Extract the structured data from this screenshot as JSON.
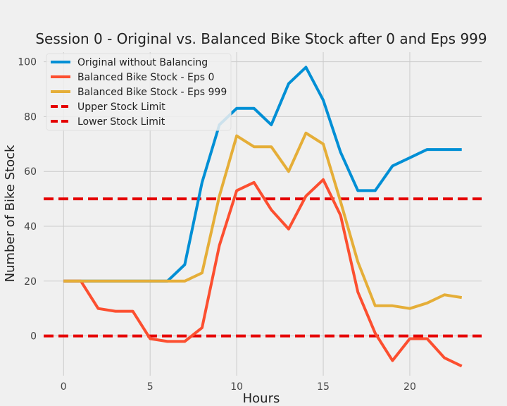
{
  "chart_data": {
    "type": "line",
    "title": "Session 0 - Original vs. Balanced Bike Stock after 0 and Eps 999",
    "xlabel": "Hours",
    "ylabel": "Number of Bike Stock",
    "xlim": [
      -1.15,
      24.15
    ],
    "ylim": [
      -14.5,
      103.5
    ],
    "xticks": [
      0,
      5,
      10,
      15,
      20
    ],
    "yticks": [
      0,
      20,
      40,
      60,
      80,
      100
    ],
    "grid": true,
    "legend_position": "top-left",
    "x": [
      0,
      1,
      2,
      3,
      4,
      5,
      6,
      7,
      8,
      9,
      10,
      11,
      12,
      13,
      14,
      15,
      16,
      17,
      18,
      19,
      20,
      21,
      22,
      23
    ],
    "series": [
      {
        "name": "Original without Balancing",
        "color": "#008fd5",
        "values": [
          20,
          20,
          20,
          20,
          20,
          20,
          20,
          26,
          56,
          77,
          83,
          83,
          77,
          92,
          98,
          86,
          67,
          53,
          53,
          62,
          65,
          68,
          68,
          68
        ]
      },
      {
        "name": "Balanced Bike Stock - Eps 0",
        "color": "#fc4f30",
        "values": [
          20,
          20,
          10,
          9,
          9,
          -1,
          -2,
          -2,
          3,
          33,
          53,
          56,
          46,
          39,
          51,
          57,
          44,
          16,
          1,
          -9,
          -1,
          -1,
          -8,
          -11
        ]
      },
      {
        "name": "Balanced Bike Stock - Eps 999",
        "color": "#e5ae38",
        "values": [
          20,
          20,
          20,
          20,
          20,
          20,
          20,
          20,
          23,
          51,
          73,
          69,
          69,
          60,
          74,
          70,
          49,
          27,
          11,
          11,
          10,
          12,
          15,
          14
        ]
      }
    ],
    "hlines": [
      {
        "name": "Upper Stock Limit",
        "y": 50,
        "color": "#e50000",
        "style": "dashed"
      },
      {
        "name": "Lower Stock Limit",
        "y": 0,
        "color": "#e50000",
        "style": "dashed"
      }
    ]
  }
}
